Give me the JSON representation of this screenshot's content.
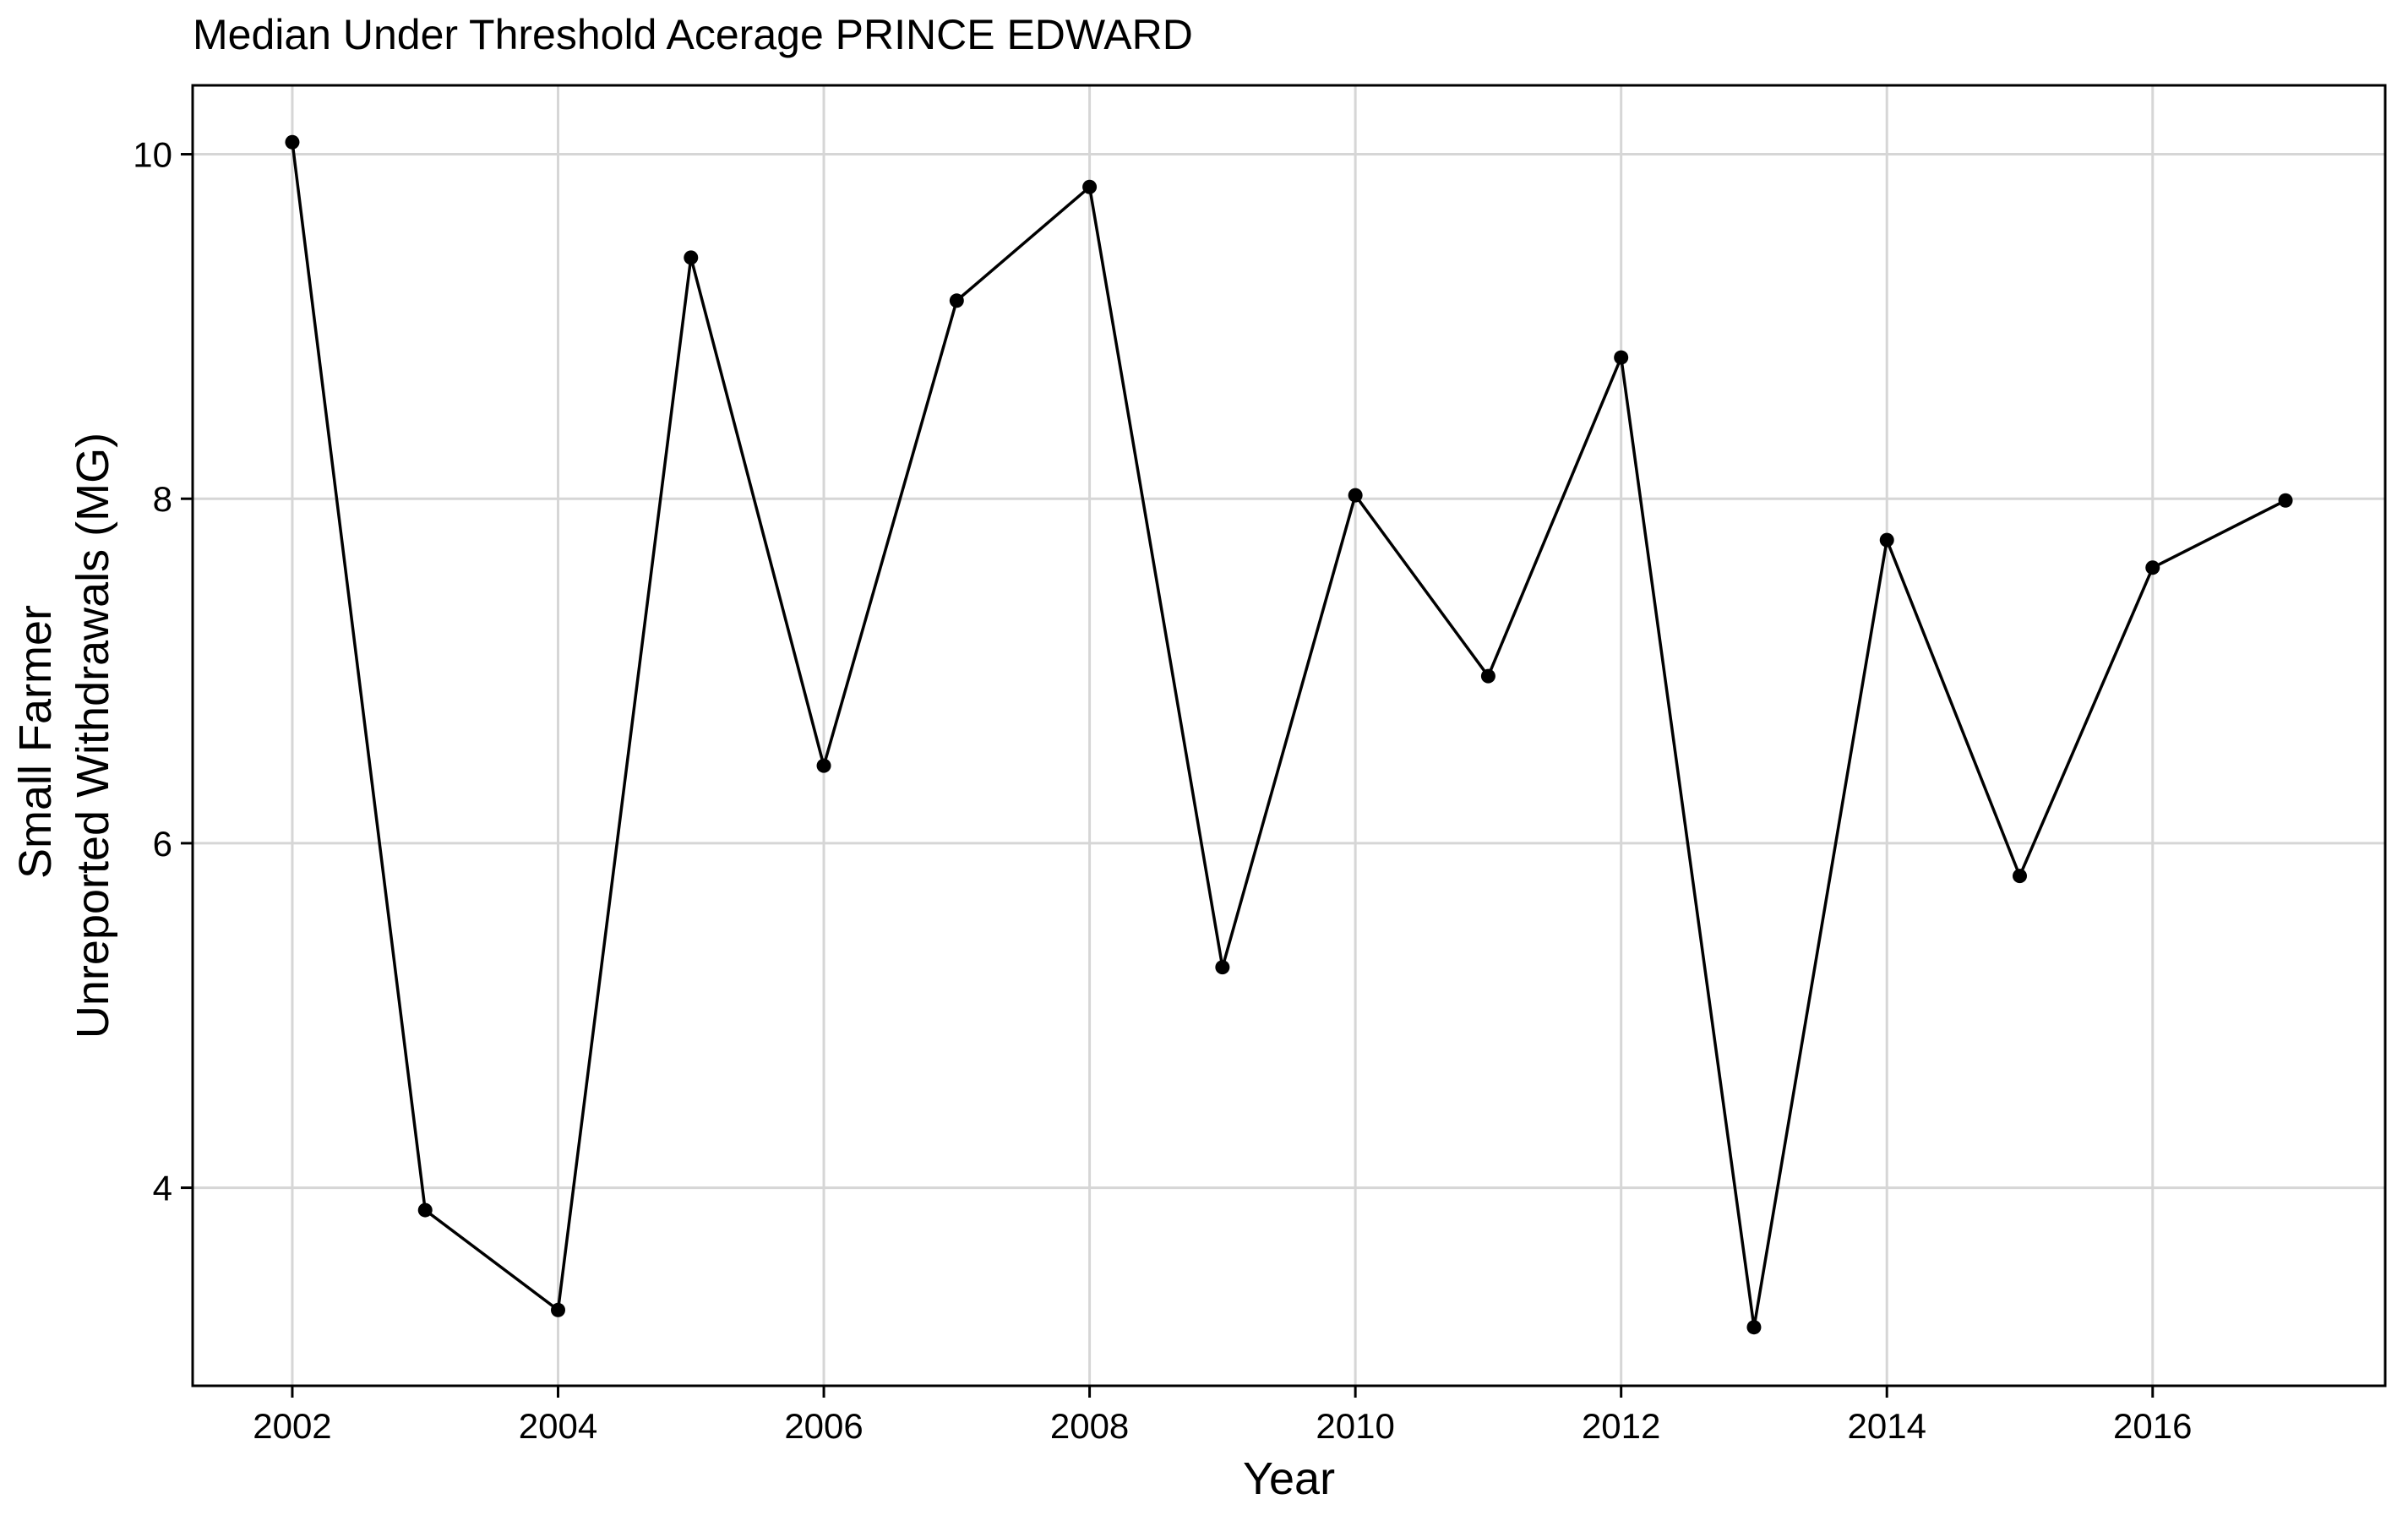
{
  "chart_data": {
    "type": "line",
    "title": "Median Under Threshold Acerage PRINCE EDWARD",
    "xlabel": "Year",
    "ylabel_lines": [
      "Small Farmer",
      "Unreported Withdrawals (MG)"
    ],
    "xlim": [
      2001.25,
      2017.75
    ],
    "ylim": [
      2.85,
      10.4
    ],
    "x_ticks": [
      2002,
      2004,
      2006,
      2008,
      2010,
      2012,
      2014,
      2016
    ],
    "x_tick_labels": [
      "2002",
      "2004",
      "2006",
      "2008",
      "2010",
      "2012",
      "2014",
      "2016"
    ],
    "y_ticks": [
      4,
      6,
      8,
      10
    ],
    "y_tick_labels": [
      "4",
      "6",
      "8",
      "10"
    ],
    "grid": true,
    "series": [
      {
        "x": [
          2002,
          2003,
          2004,
          2005,
          2006,
          2007,
          2008,
          2009,
          2010,
          2011,
          2012,
          2013,
          2014,
          2015,
          2016,
          2017
        ],
        "y": [
          10.07,
          3.87,
          3.29,
          9.4,
          6.45,
          9.15,
          9.81,
          5.28,
          8.02,
          6.97,
          8.82,
          3.19,
          7.76,
          5.81,
          7.6,
          7.99
        ],
        "color": "#000000"
      }
    ]
  }
}
